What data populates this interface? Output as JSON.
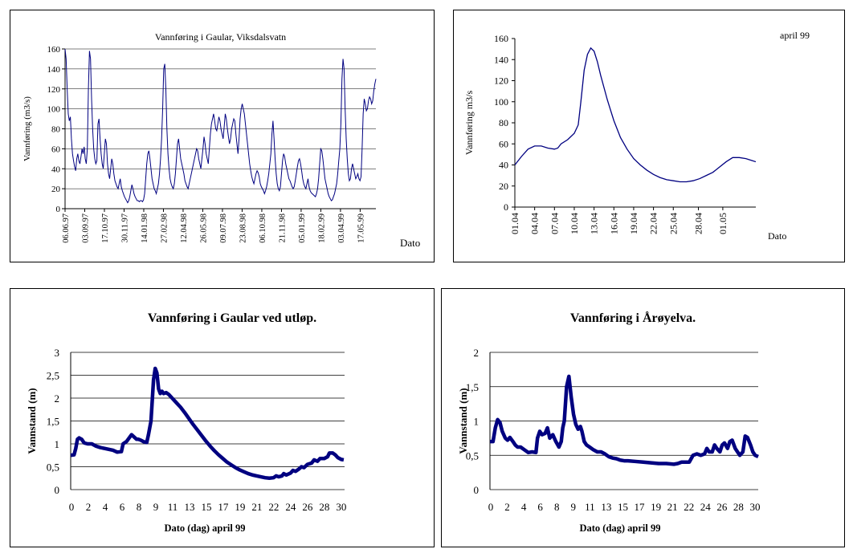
{
  "chart_data": [
    {
      "type": "line",
      "title": "Vannføring i Gaular, Viksdalsvatn",
      "ylabel": "Vannføring (m3/s)",
      "xlabel": "Dato",
      "ylim": [
        0,
        160
      ],
      "yticks": [
        "0",
        "20",
        "40",
        "60",
        "80",
        "100",
        "120",
        "140",
        "160"
      ],
      "xticks": [
        "06.06.97",
        "03.09.97",
        "17.10.97",
        "30.11.97",
        "14.01.98",
        "27.02.98",
        "12.04.98",
        "26.05.98",
        "09.07.98",
        "23.08.98",
        "06.10.98",
        "21.11.98",
        "05.01.99",
        "18.02.99",
        "03.04.99",
        "17.05.99"
      ],
      "grid": "horizontal",
      "line_color": "#000080",
      "values": [
        160,
        150,
        120,
        95,
        88,
        92,
        70,
        55,
        48,
        42,
        38,
        50,
        55,
        48,
        45,
        52,
        60,
        55,
        62,
        50,
        45,
        60,
        120,
        158,
        150,
        110,
        80,
        60,
        50,
        45,
        48,
        85,
        90,
        70,
        55,
        45,
        40,
        55,
        70,
        65,
        45,
        35,
        30,
        40,
        50,
        45,
        35,
        28,
        25,
        22,
        20,
        25,
        30,
        22,
        18,
        15,
        12,
        10,
        8,
        6,
        8,
        12,
        18,
        24,
        20,
        15,
        12,
        10,
        8,
        8,
        7,
        8,
        8,
        7,
        9,
        15,
        30,
        45,
        55,
        58,
        50,
        40,
        30,
        25,
        20,
        18,
        15,
        20,
        25,
        35,
        50,
        70,
        100,
        140,
        145,
        120,
        80,
        55,
        40,
        30,
        25,
        22,
        20,
        25,
        35,
        50,
        65,
        70,
        60,
        50,
        45,
        40,
        35,
        28,
        25,
        22,
        20,
        25,
        30,
        35,
        40,
        45,
        50,
        55,
        60,
        58,
        50,
        45,
        40,
        50,
        60,
        72,
        65,
        55,
        50,
        45,
        60,
        75,
        85,
        90,
        95,
        88,
        80,
        78,
        85,
        92,
        88,
        80,
        75,
        70,
        82,
        95,
        90,
        80,
        72,
        65,
        70,
        80,
        85,
        90,
        88,
        75,
        65,
        55,
        70,
        90,
        100,
        105,
        100,
        95,
        85,
        75,
        65,
        55,
        45,
        38,
        32,
        28,
        25,
        30,
        35,
        38,
        36,
        32,
        25,
        22,
        20,
        18,
        15,
        18,
        22,
        28,
        35,
        45,
        55,
        75,
        88,
        70,
        50,
        35,
        25,
        20,
        18,
        22,
        35,
        48,
        55,
        52,
        45,
        40,
        35,
        30,
        28,
        25,
        22,
        20,
        22,
        28,
        35,
        42,
        48,
        50,
        45,
        38,
        30,
        25,
        22,
        20,
        25,
        30,
        22,
        18,
        16,
        15,
        14,
        13,
        12,
        15,
        20,
        30,
        45,
        60,
        58,
        50,
        40,
        30,
        25,
        20,
        15,
        12,
        10,
        8,
        9,
        12,
        15,
        20,
        25,
        35,
        48,
        60,
        85,
        130,
        150,
        140,
        100,
        70,
        50,
        35,
        28,
        30,
        40,
        45,
        40,
        35,
        30,
        32,
        35,
        30,
        28,
        32,
        60,
        95,
        110,
        105,
        98,
        100,
        108,
        112,
        110,
        105,
        108,
        118,
        125,
        130
      ]
    },
    {
      "type": "line",
      "title": "",
      "annotation": "april 99",
      "ylabel": "Vannføring m3/s",
      "xlabel": "Dato",
      "ylim": [
        0,
        160
      ],
      "yticks": [
        "0",
        "20",
        "40",
        "60",
        "80",
        "100",
        "120",
        "140",
        "160"
      ],
      "xticks": [
        "01.04",
        "04.04",
        "07.04",
        "10.04",
        "13.04",
        "16.04",
        "19.04",
        "22.04",
        "25.04",
        "28.04",
        "01.05"
      ],
      "grid": "none",
      "line_color": "#000080",
      "x_start_day": 1,
      "x_end_day": 32,
      "points": [
        [
          1,
          40
        ],
        [
          2,
          48
        ],
        [
          3,
          55
        ],
        [
          4,
          58
        ],
        [
          5,
          58
        ],
        [
          6,
          56
        ],
        [
          7,
          55
        ],
        [
          7.5,
          56
        ],
        [
          8,
          60
        ],
        [
          9,
          64
        ],
        [
          10,
          70
        ],
        [
          10.6,
          78
        ],
        [
          11,
          100
        ],
        [
          11.5,
          130
        ],
        [
          12,
          145
        ],
        [
          12.5,
          151
        ],
        [
          13,
          148
        ],
        [
          13.5,
          138
        ],
        [
          14,
          125
        ],
        [
          15,
          102
        ],
        [
          16,
          82
        ],
        [
          17,
          66
        ],
        [
          18,
          55
        ],
        [
          19,
          46
        ],
        [
          20,
          40
        ],
        [
          21,
          35
        ],
        [
          22,
          31
        ],
        [
          23,
          28
        ],
        [
          24,
          26
        ],
        [
          25,
          25
        ],
        [
          26,
          24
        ],
        [
          27,
          24
        ],
        [
          28,
          25
        ],
        [
          29,
          27
        ],
        [
          30,
          30
        ],
        [
          31,
          33
        ],
        [
          32,
          38
        ],
        [
          33,
          43
        ],
        [
          34,
          47
        ],
        [
          35,
          47
        ],
        [
          36,
          46
        ],
        [
          37,
          44
        ],
        [
          37.5,
          43
        ]
      ]
    },
    {
      "type": "line",
      "title": "Vannføring i Gaular ved utløp.",
      "ylabel": "Vannstand (m)",
      "xlabel": "Dato (dag) april 99",
      "ylim": [
        0,
        3
      ],
      "yticks": [
        "0",
        "0,5",
        "1",
        "1,5",
        "2",
        "2,5",
        "3"
      ],
      "xticks": [
        "0",
        "2",
        "4",
        "6",
        "8",
        "9",
        "11",
        "13",
        "15",
        "17",
        "19",
        "21",
        "22",
        "24",
        "26",
        "28",
        "30"
      ],
      "grid": "horizontal",
      "line_color": "#000080",
      "points": [
        [
          0,
          0.75
        ],
        [
          0.4,
          0.76
        ],
        [
          0.6,
          0.9
        ],
        [
          0.8,
          1.1
        ],
        [
          1,
          1.13
        ],
        [
          1.3,
          1.1
        ],
        [
          1.6,
          1.02
        ],
        [
          2,
          1.0
        ],
        [
          2.5,
          1.0
        ],
        [
          3,
          0.95
        ],
        [
          3.5,
          0.92
        ],
        [
          4,
          0.9
        ],
        [
          4.5,
          0.88
        ],
        [
          5,
          0.86
        ],
        [
          5.5,
          0.82
        ],
        [
          6,
          0.83
        ],
        [
          6.2,
          1.0
        ],
        [
          6.6,
          1.05
        ],
        [
          7,
          1.15
        ],
        [
          7.2,
          1.2
        ],
        [
          7.5,
          1.15
        ],
        [
          7.8,
          1.1
        ],
        [
          8,
          1.1
        ],
        [
          8.3,
          1.08
        ],
        [
          8.6,
          1.05
        ],
        [
          9,
          1.03
        ],
        [
          9.2,
          1.2
        ],
        [
          9.5,
          1.5
        ],
        [
          9.8,
          2.4
        ],
        [
          10,
          2.65
        ],
        [
          10.2,
          2.55
        ],
        [
          10.4,
          2.2
        ],
        [
          10.6,
          2.1
        ],
        [
          10.8,
          2.15
        ],
        [
          11,
          2.1
        ],
        [
          11.3,
          2.12
        ],
        [
          11.6,
          2.08
        ],
        [
          12,
          2.0
        ],
        [
          12.5,
          1.9
        ],
        [
          13,
          1.8
        ],
        [
          13.5,
          1.68
        ],
        [
          14,
          1.55
        ],
        [
          14.5,
          1.42
        ],
        [
          15,
          1.3
        ],
        [
          15.5,
          1.18
        ],
        [
          16,
          1.06
        ],
        [
          16.5,
          0.95
        ],
        [
          17,
          0.85
        ],
        [
          17.5,
          0.76
        ],
        [
          18,
          0.68
        ],
        [
          18.5,
          0.6
        ],
        [
          19,
          0.54
        ],
        [
          19.5,
          0.48
        ],
        [
          20,
          0.43
        ],
        [
          20.5,
          0.39
        ],
        [
          21,
          0.35
        ],
        [
          21.5,
          0.32
        ],
        [
          22,
          0.3
        ],
        [
          22.5,
          0.28
        ],
        [
          23,
          0.26
        ],
        [
          23.5,
          0.25
        ],
        [
          24,
          0.26
        ],
        [
          24.3,
          0.3
        ],
        [
          24.6,
          0.28
        ],
        [
          25,
          0.3
        ],
        [
          25.2,
          0.35
        ],
        [
          25.5,
          0.32
        ],
        [
          26,
          0.36
        ],
        [
          26.3,
          0.42
        ],
        [
          26.6,
          0.4
        ],
        [
          27,
          0.45
        ],
        [
          27.3,
          0.5
        ],
        [
          27.6,
          0.48
        ],
        [
          28,
          0.55
        ],
        [
          28.5,
          0.58
        ],
        [
          28.8,
          0.65
        ],
        [
          29.2,
          0.62
        ],
        [
          29.5,
          0.68
        ],
        [
          30,
          0.68
        ],
        [
          30.4,
          0.72
        ],
        [
          30.6,
          0.8
        ],
        [
          31,
          0.8
        ],
        [
          31.3,
          0.76
        ],
        [
          31.6,
          0.7
        ],
        [
          32,
          0.66
        ],
        [
          32.3,
          0.65
        ]
      ]
    },
    {
      "type": "line",
      "title": "Vannføring i Årøyelva.",
      "ylabel": "Vannstand (m)",
      "xlabel": "Dato (dag) april 99",
      "ylim": [
        0,
        2
      ],
      "yticks": [
        "0",
        "0,5",
        "1",
        "1,5",
        "2"
      ],
      "xticks": [
        "0",
        "2",
        "4",
        "6",
        "8",
        "9",
        "11",
        "13",
        "15",
        "17",
        "19",
        "21",
        "22",
        "24",
        "26",
        "28",
        "30"
      ],
      "grid": "horizontal",
      "line_color": "#000080",
      "points": [
        [
          0,
          0.7
        ],
        [
          0.4,
          0.7
        ],
        [
          0.7,
          0.9
        ],
        [
          1,
          1.02
        ],
        [
          1.3,
          0.98
        ],
        [
          1.6,
          0.85
        ],
        [
          2,
          0.75
        ],
        [
          2.3,
          0.72
        ],
        [
          2.6,
          0.76
        ],
        [
          3,
          0.7
        ],
        [
          3.3,
          0.65
        ],
        [
          3.6,
          0.62
        ],
        [
          4,
          0.62
        ],
        [
          4.5,
          0.58
        ],
        [
          5,
          0.54
        ],
        [
          5.5,
          0.55
        ],
        [
          6,
          0.54
        ],
        [
          6.2,
          0.75
        ],
        [
          6.5,
          0.85
        ],
        [
          6.8,
          0.8
        ],
        [
          7.2,
          0.82
        ],
        [
          7.5,
          0.9
        ],
        [
          7.8,
          0.75
        ],
        [
          8.2,
          0.8
        ],
        [
          8.6,
          0.7
        ],
        [
          9,
          0.62
        ],
        [
          9.3,
          0.7
        ],
        [
          9.5,
          0.9
        ],
        [
          9.7,
          1.0
        ],
        [
          10,
          1.5
        ],
        [
          10.3,
          1.65
        ],
        [
          10.6,
          1.35
        ],
        [
          10.9,
          1.1
        ],
        [
          11.2,
          0.95
        ],
        [
          11.5,
          0.88
        ],
        [
          11.8,
          0.92
        ],
        [
          12,
          0.85
        ],
        [
          12.3,
          0.7
        ],
        [
          12.6,
          0.65
        ],
        [
          13,
          0.62
        ],
        [
          13.5,
          0.58
        ],
        [
          14,
          0.55
        ],
        [
          14.5,
          0.55
        ],
        [
          15,
          0.52
        ],
        [
          15.5,
          0.48
        ],
        [
          16,
          0.46
        ],
        [
          16.5,
          0.45
        ],
        [
          17,
          0.43
        ],
        [
          17.5,
          0.42
        ],
        [
          18,
          0.42
        ],
        [
          19,
          0.41
        ],
        [
          20,
          0.4
        ],
        [
          21,
          0.39
        ],
        [
          22,
          0.38
        ],
        [
          23,
          0.38
        ],
        [
          24,
          0.37
        ],
        [
          24.5,
          0.38
        ],
        [
          25,
          0.4
        ],
        [
          25.5,
          0.4
        ],
        [
          26,
          0.4
        ],
        [
          26.5,
          0.5
        ],
        [
          27,
          0.52
        ],
        [
          27.5,
          0.5
        ],
        [
          28,
          0.52
        ],
        [
          28.3,
          0.6
        ],
        [
          28.6,
          0.55
        ],
        [
          29,
          0.55
        ],
        [
          29.3,
          0.65
        ],
        [
          29.6,
          0.6
        ],
        [
          30,
          0.55
        ],
        [
          30.3,
          0.65
        ],
        [
          30.6,
          0.68
        ],
        [
          31,
          0.6
        ],
        [
          31.3,
          0.7
        ],
        [
          31.6,
          0.72
        ],
        [
          32,
          0.6
        ],
        [
          32.3,
          0.55
        ],
        [
          32.6,
          0.5
        ],
        [
          33,
          0.55
        ],
        [
          33.3,
          0.78
        ],
        [
          33.6,
          0.76
        ],
        [
          34,
          0.65
        ],
        [
          34.3,
          0.55
        ],
        [
          34.6,
          0.5
        ],
        [
          35,
          0.48
        ]
      ]
    }
  ]
}
